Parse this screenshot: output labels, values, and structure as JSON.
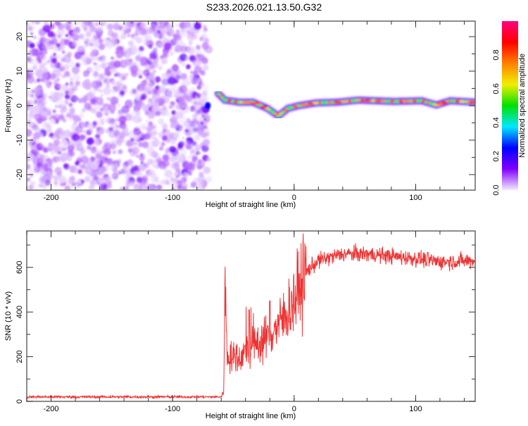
{
  "title": "S233.2026.021.13.50.G32",
  "chart_data": [
    {
      "type": "heatmap",
      "xlabel": "Height of straight line (km)",
      "ylabel": "Frequency (Hz)",
      "xlim": [
        -220,
        149
      ],
      "ylim": [
        -24.5,
        24.5
      ],
      "xticks": [
        -200,
        -100,
        0,
        100
      ],
      "yticks": [
        -20,
        -10,
        0,
        10,
        20
      ],
      "noise_region_x": [
        -220,
        -70
      ],
      "ridge": {
        "x": [
          -62.5,
          -57,
          -45,
          -34,
          -22,
          -13,
          -5,
          4,
          18.5,
          36,
          53,
          82,
          105,
          117,
          128.5,
          149
        ],
        "frequency": [
          3.5,
          1.6,
          1.0,
          1.0,
          -0.8,
          -3.0,
          -0.8,
          0.0,
          0.8,
          1.0,
          1.6,
          1.2,
          1.4,
          0.2,
          1.4,
          1.0
        ]
      },
      "colorbar": {
        "label": "Normalized spectral amplitude",
        "range": [
          0,
          1
        ],
        "ticks": [
          "0.0",
          "0.2",
          "0.4",
          "0.6",
          "0.8"
        ],
        "colors": [
          "#f4ecff",
          "#8000ff",
          "#0000ff",
          "#00e8ff",
          "#00e000",
          "#f0f000",
          "#ff8000",
          "#ff0000",
          "#ff0080"
        ]
      }
    },
    {
      "type": "line",
      "xlabel": "Height of straight line (km)",
      "ylabel": "SNR (10 * v/v)",
      "xlim": [
        -220,
        149
      ],
      "ylim": [
        0,
        763
      ],
      "xticks": [
        -200,
        -100,
        0,
        100
      ],
      "yticks": [
        0,
        200,
        400,
        600
      ],
      "color": "#ee3333",
      "trend": {
        "x": [
          -220,
          -60,
          -58,
          -57,
          -55,
          -45,
          -37,
          -30,
          -20,
          -10,
          0,
          10,
          20,
          40,
          60,
          80,
          100,
          120,
          149
        ],
        "snr": [
          20,
          20,
          40,
          540,
          200,
          200,
          230,
          260,
          300,
          360,
          450,
          580,
          630,
          660,
          660,
          650,
          640,
          625,
          630
        ]
      }
    }
  ]
}
